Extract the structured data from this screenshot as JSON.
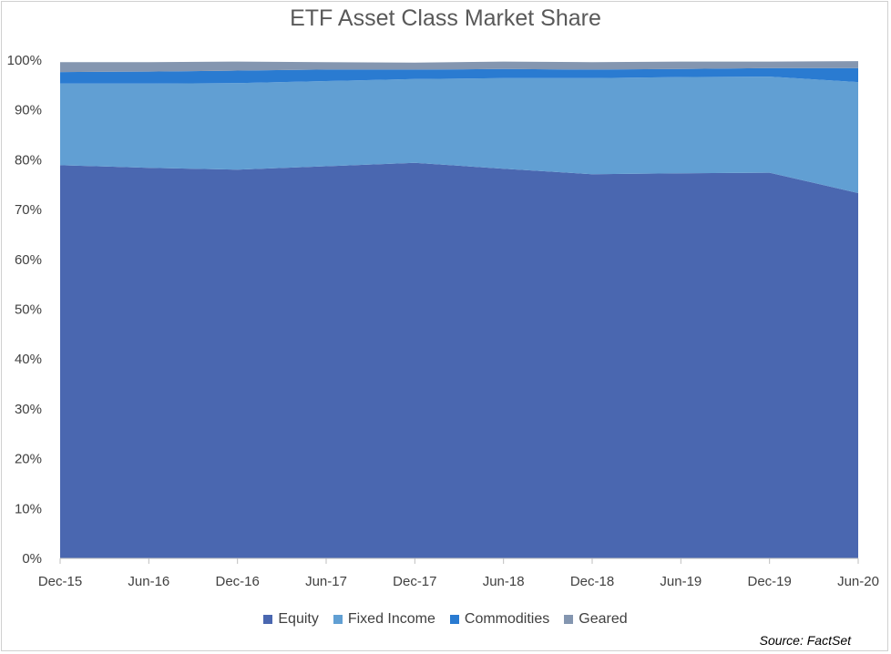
{
  "chart_data": {
    "type": "area",
    "stacked": true,
    "title": "ETF Asset Class Market Share",
    "xlabel": "",
    "ylabel": "",
    "x": [
      "Dec-15",
      "Jun-16",
      "Dec-16",
      "Jun-17",
      "Dec-17",
      "Jun-18",
      "Dec-18",
      "Jun-19",
      "Dec-19",
      "Jun-20"
    ],
    "ylim": [
      0,
      100
    ],
    "yticks": [
      "0%",
      "10%",
      "20%",
      "30%",
      "40%",
      "50%",
      "60%",
      "70%",
      "80%",
      "90%",
      "100%"
    ],
    "grid": false,
    "legend_position": "bottom",
    "series": [
      {
        "name": "Equity",
        "color": "#4a67b0",
        "values": [
          78.9,
          78.4,
          78.0,
          78.7,
          79.4,
          78.2,
          77.1,
          77.3,
          77.4,
          73.3
        ]
      },
      {
        "name": "Fixed Income",
        "color": "#619fd3",
        "values": [
          16.4,
          16.9,
          17.4,
          17.1,
          16.8,
          18.2,
          19.3,
          19.3,
          19.3,
          22.3
        ]
      },
      {
        "name": "Commodities",
        "color": "#2a7bd1",
        "values": [
          2.3,
          2.4,
          2.5,
          2.3,
          1.9,
          1.8,
          1.7,
          1.6,
          1.7,
          2.8
        ]
      },
      {
        "name": "Geared",
        "color": "#8496b0",
        "values": [
          2.0,
          1.9,
          1.8,
          1.5,
          1.4,
          1.5,
          1.5,
          1.5,
          1.3,
          1.4
        ]
      }
    ],
    "source": "Source: FactSet"
  }
}
